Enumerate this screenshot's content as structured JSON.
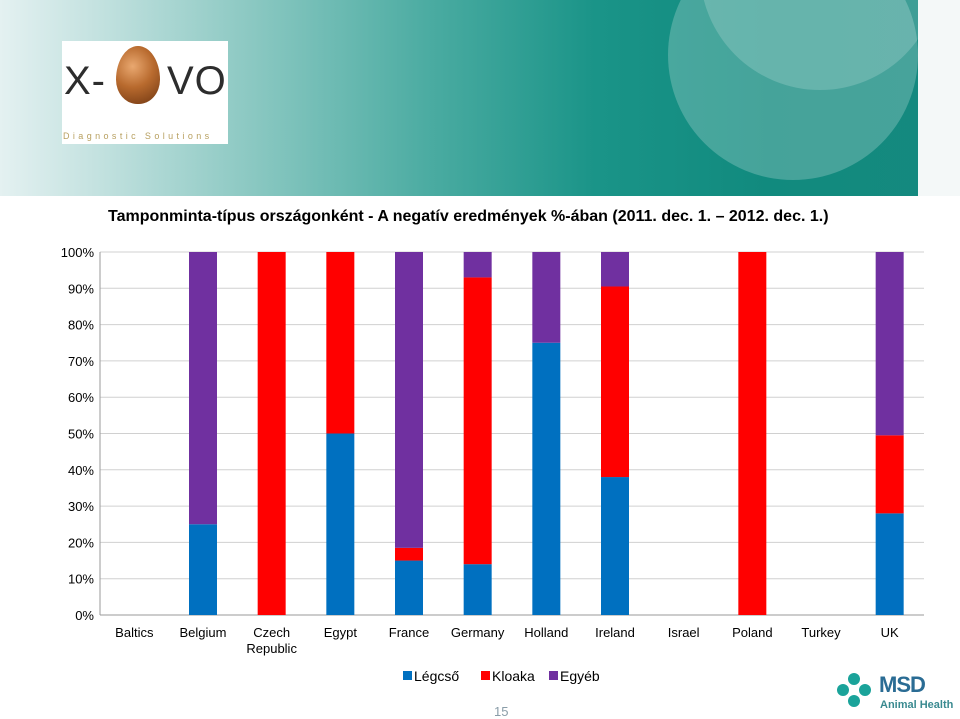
{
  "logo": {
    "left": "X-",
    "right": "VO",
    "tagline": "Diagnostic Solutions"
  },
  "chart_data": {
    "type": "bar",
    "stacked": true,
    "percent": true,
    "title": "Tamponminta-típus országonként -  A negatív eredmények %-ában (2011. dec. 1. – 2012. dec. 1.)",
    "categories": [
      "Baltics",
      "Belgium",
      "Czech Republic",
      "Egypt",
      "France",
      "Germany",
      "Holland",
      "Ireland",
      "Israel",
      "Poland",
      "Turkey",
      "UK"
    ],
    "series": [
      {
        "name": "Légcső",
        "color": "#0070c0",
        "values": [
          0,
          25,
          0,
          50,
          15,
          14,
          75,
          38,
          0,
          0,
          0,
          28
        ]
      },
      {
        "name": "Kloaka",
        "color": "#ff0000",
        "values": [
          0,
          0,
          100,
          50,
          3.5,
          79,
          0,
          52.5,
          0,
          100,
          0,
          21.5
        ]
      },
      {
        "name": "Egyéb",
        "color": "#7030a0",
        "values": [
          0,
          75,
          0,
          0,
          81.5,
          7,
          25,
          9.5,
          0,
          0,
          0,
          50.5
        ]
      }
    ],
    "ylim": [
      0,
      100
    ],
    "yticks": [
      "0%",
      "10%",
      "20%",
      "30%",
      "40%",
      "50%",
      "60%",
      "70%",
      "80%",
      "90%",
      "100%"
    ],
    "grid": true,
    "legend": "bottom"
  },
  "footer": {
    "page": "15",
    "brand": "MSD",
    "brand_sub": "Animal Health"
  }
}
